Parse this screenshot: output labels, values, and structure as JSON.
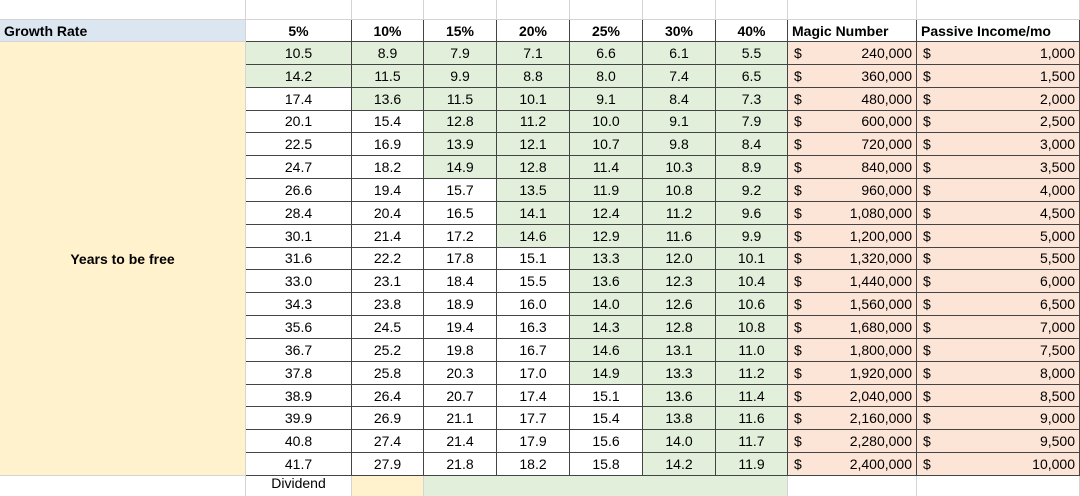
{
  "header": {
    "label": "Growth Rate",
    "rates": [
      "5%",
      "10%",
      "15%",
      "20%",
      "25%",
      "30%",
      "40%"
    ],
    "magic": "Magic Number",
    "passive": "Passive Income/mo"
  },
  "side_label": "Years to be free",
  "currency": "$",
  "rows": [
    {
      "years": [
        "10.5",
        "8.9",
        "7.9",
        "7.1",
        "6.6",
        "6.1",
        "5.5"
      ],
      "magic": "240,000",
      "passive": "1,000"
    },
    {
      "years": [
        "14.2",
        "11.5",
        "9.9",
        "8.8",
        "8.0",
        "7.4",
        "6.5"
      ],
      "magic": "360,000",
      "passive": "1,500"
    },
    {
      "years": [
        "17.4",
        "13.6",
        "11.5",
        "10.1",
        "9.1",
        "8.4",
        "7.3"
      ],
      "magic": "480,000",
      "passive": "2,000"
    },
    {
      "years": [
        "20.1",
        "15.4",
        "12.8",
        "11.2",
        "10.0",
        "9.1",
        "7.9"
      ],
      "magic": "600,000",
      "passive": "2,500"
    },
    {
      "years": [
        "22.5",
        "16.9",
        "13.9",
        "12.1",
        "10.7",
        "9.8",
        "8.4"
      ],
      "magic": "720,000",
      "passive": "3,000"
    },
    {
      "years": [
        "24.7",
        "18.2",
        "14.9",
        "12.8",
        "11.4",
        "10.3",
        "8.9"
      ],
      "magic": "840,000",
      "passive": "3,500"
    },
    {
      "years": [
        "26.6",
        "19.4",
        "15.7",
        "13.5",
        "11.9",
        "10.8",
        "9.2"
      ],
      "magic": "960,000",
      "passive": "4,000"
    },
    {
      "years": [
        "28.4",
        "20.4",
        "16.5",
        "14.1",
        "12.4",
        "11.2",
        "9.6"
      ],
      "magic": "1,080,000",
      "passive": "4,500"
    },
    {
      "years": [
        "30.1",
        "21.4",
        "17.2",
        "14.6",
        "12.9",
        "11.6",
        "9.9"
      ],
      "magic": "1,200,000",
      "passive": "5,000"
    },
    {
      "years": [
        "31.6",
        "22.2",
        "17.8",
        "15.1",
        "13.3",
        "12.0",
        "10.1"
      ],
      "magic": "1,320,000",
      "passive": "5,500"
    },
    {
      "years": [
        "33.0",
        "23.1",
        "18.4",
        "15.5",
        "13.6",
        "12.3",
        "10.4"
      ],
      "magic": "1,440,000",
      "passive": "6,000"
    },
    {
      "years": [
        "34.3",
        "23.8",
        "18.9",
        "16.0",
        "14.0",
        "12.6",
        "10.6"
      ],
      "magic": "1,560,000",
      "passive": "6,500"
    },
    {
      "years": [
        "35.6",
        "24.5",
        "19.4",
        "16.3",
        "14.3",
        "12.8",
        "10.8"
      ],
      "magic": "1,680,000",
      "passive": "7,000"
    },
    {
      "years": [
        "36.7",
        "25.2",
        "19.8",
        "16.7",
        "14.6",
        "13.1",
        "11.0"
      ],
      "magic": "1,800,000",
      "passive": "7,500"
    },
    {
      "years": [
        "37.8",
        "25.8",
        "20.3",
        "17.0",
        "14.9",
        "13.3",
        "11.2"
      ],
      "magic": "1,920,000",
      "passive": "8,000"
    },
    {
      "years": [
        "38.9",
        "26.4",
        "20.7",
        "17.4",
        "15.1",
        "13.6",
        "11.4"
      ],
      "magic": "2,040,000",
      "passive": "8,500"
    },
    {
      "years": [
        "39.9",
        "26.9",
        "21.1",
        "17.7",
        "15.4",
        "13.8",
        "11.6"
      ],
      "magic": "2,160,000",
      "passive": "9,000"
    },
    {
      "years": [
        "40.8",
        "27.4",
        "21.4",
        "17.9",
        "15.6",
        "14.0",
        "11.7"
      ],
      "magic": "2,280,000",
      "passive": "9,500"
    },
    {
      "years": [
        "41.7",
        "27.9",
        "21.8",
        "18.2",
        "15.8",
        "14.2",
        "11.9"
      ],
      "magic": "2,400,000",
      "passive": "10,000"
    }
  ],
  "footer": {
    "dividend": "Dividend"
  },
  "highlight": {
    "color": "#e2efda",
    "below": 15
  }
}
